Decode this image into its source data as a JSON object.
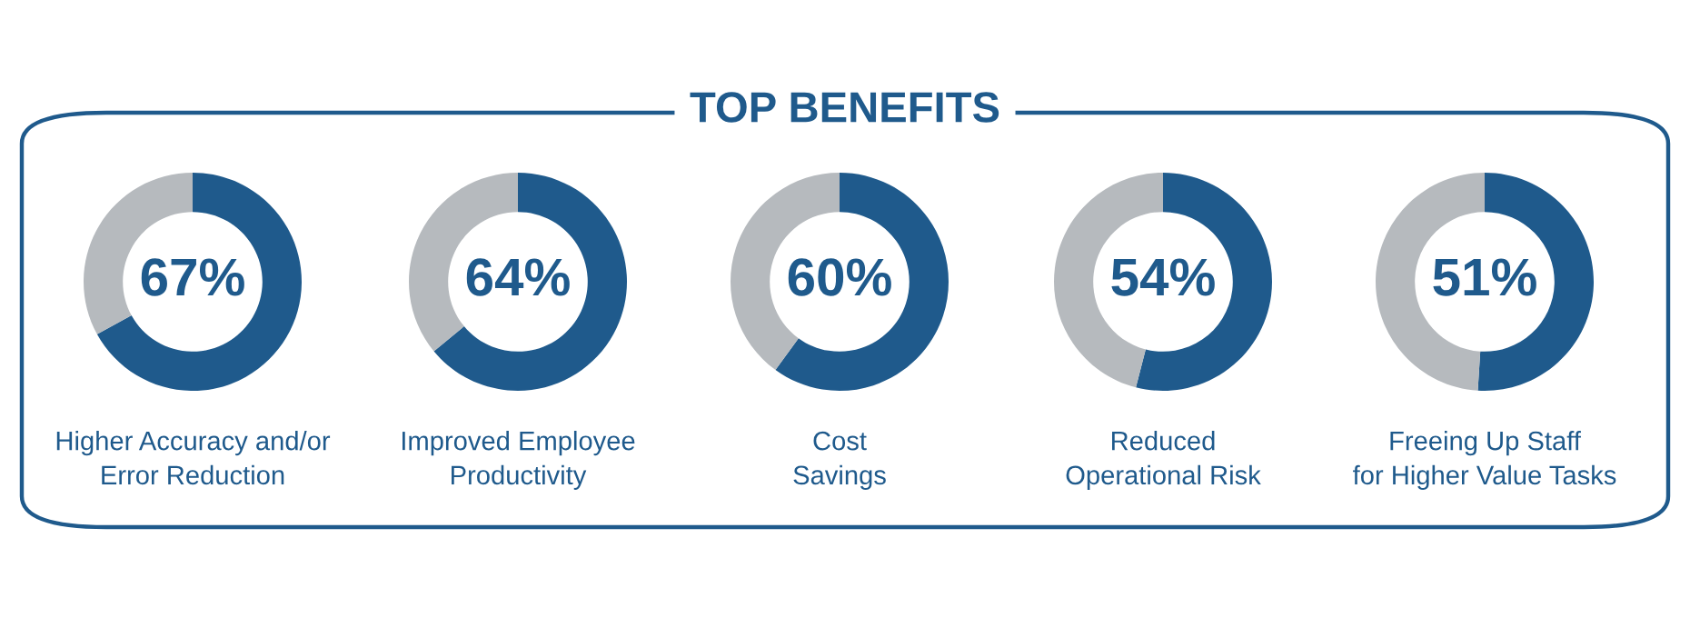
{
  "chart_data": [
    {
      "type": "donut",
      "title": "Higher Accuracy and/or\nError Reduction",
      "categories": [
        null,
        null
      ],
      "values": [
        67,
        33
      ],
      "colors": [
        "#1f5a8c",
        "#b6babe"
      ],
      "value_labels": [
        "67%",
        null
      ],
      "annotations": [
        "TOP BENEFITS"
      ]
    },
    {
      "type": "donut",
      "title": "Improved Employee\nProductivity",
      "categories": [
        null,
        null
      ],
      "values": [
        64,
        36
      ],
      "colors": [
        "#1f5a8c",
        "#b6babe"
      ],
      "value_labels": [
        "64%",
        null
      ]
    },
    {
      "type": "donut",
      "title": "Cost\nSavings",
      "categories": [
        null,
        null
      ],
      "values": [
        60,
        40
      ],
      "colors": [
        "#1f5a8c",
        "#b6babe"
      ],
      "value_labels": [
        "60%",
        null
      ]
    },
    {
      "type": "donut",
      "title": "Reduced\nOperational Risk",
      "categories": [
        null,
        null
      ],
      "values": [
        54,
        46
      ],
      "colors": [
        "#1f5a8c",
        "#b6babe"
      ],
      "value_labels": [
        "54%",
        null
      ]
    },
    {
      "type": "donut",
      "title": "Freeing Up Staff\nfor Higher Value Tasks",
      "categories": [
        null,
        null
      ],
      "values": [
        51,
        49
      ],
      "colors": [
        "#1f5a8c",
        "#b6babe"
      ],
      "value_labels": [
        "51%",
        null
      ]
    }
  ]
}
